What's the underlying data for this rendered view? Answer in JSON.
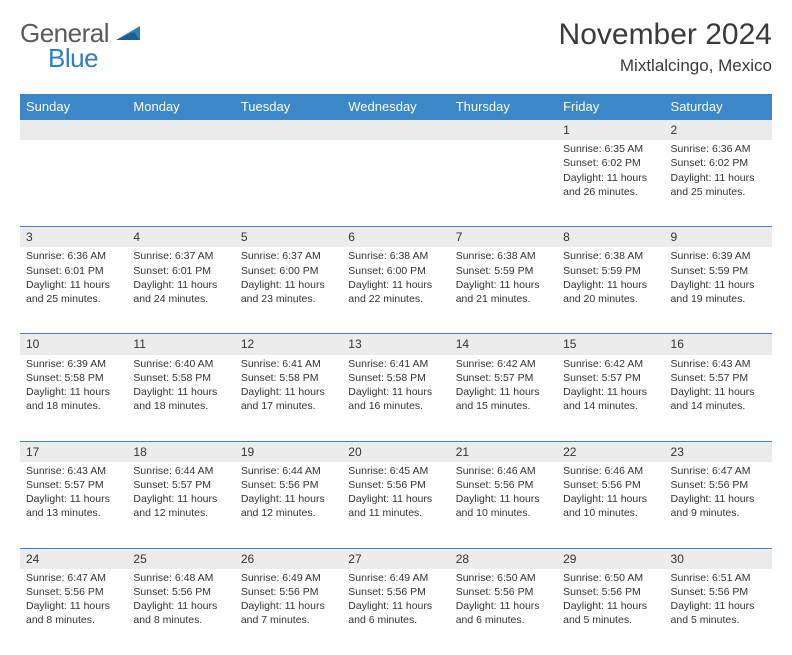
{
  "logo": {
    "text1": "General",
    "text2": "Blue",
    "color_general": "#5a5a5a",
    "color_blue": "#2f7ec1"
  },
  "title": "November 2024",
  "location": "Mixtlalcingo, Mexico",
  "header_bg": "#3b87c8",
  "header_fg": "#ffffff",
  "daynum_bg": "#ececec",
  "border_color": "#3b87c8",
  "text_color": "#333333",
  "weekdays": [
    "Sunday",
    "Monday",
    "Tuesday",
    "Wednesday",
    "Thursday",
    "Friday",
    "Saturday"
  ],
  "weeks": [
    [
      null,
      null,
      null,
      null,
      null,
      {
        "n": "1",
        "sr": "6:35 AM",
        "ss": "6:02 PM",
        "dl": "11 hours and 26 minutes."
      },
      {
        "n": "2",
        "sr": "6:36 AM",
        "ss": "6:02 PM",
        "dl": "11 hours and 25 minutes."
      }
    ],
    [
      {
        "n": "3",
        "sr": "6:36 AM",
        "ss": "6:01 PM",
        "dl": "11 hours and 25 minutes."
      },
      {
        "n": "4",
        "sr": "6:37 AM",
        "ss": "6:01 PM",
        "dl": "11 hours and 24 minutes."
      },
      {
        "n": "5",
        "sr": "6:37 AM",
        "ss": "6:00 PM",
        "dl": "11 hours and 23 minutes."
      },
      {
        "n": "6",
        "sr": "6:38 AM",
        "ss": "6:00 PM",
        "dl": "11 hours and 22 minutes."
      },
      {
        "n": "7",
        "sr": "6:38 AM",
        "ss": "5:59 PM",
        "dl": "11 hours and 21 minutes."
      },
      {
        "n": "8",
        "sr": "6:38 AM",
        "ss": "5:59 PM",
        "dl": "11 hours and 20 minutes."
      },
      {
        "n": "9",
        "sr": "6:39 AM",
        "ss": "5:59 PM",
        "dl": "11 hours and 19 minutes."
      }
    ],
    [
      {
        "n": "10",
        "sr": "6:39 AM",
        "ss": "5:58 PM",
        "dl": "11 hours and 18 minutes."
      },
      {
        "n": "11",
        "sr": "6:40 AM",
        "ss": "5:58 PM",
        "dl": "11 hours and 18 minutes."
      },
      {
        "n": "12",
        "sr": "6:41 AM",
        "ss": "5:58 PM",
        "dl": "11 hours and 17 minutes."
      },
      {
        "n": "13",
        "sr": "6:41 AM",
        "ss": "5:58 PM",
        "dl": "11 hours and 16 minutes."
      },
      {
        "n": "14",
        "sr": "6:42 AM",
        "ss": "5:57 PM",
        "dl": "11 hours and 15 minutes."
      },
      {
        "n": "15",
        "sr": "6:42 AM",
        "ss": "5:57 PM",
        "dl": "11 hours and 14 minutes."
      },
      {
        "n": "16",
        "sr": "6:43 AM",
        "ss": "5:57 PM",
        "dl": "11 hours and 14 minutes."
      }
    ],
    [
      {
        "n": "17",
        "sr": "6:43 AM",
        "ss": "5:57 PM",
        "dl": "11 hours and 13 minutes."
      },
      {
        "n": "18",
        "sr": "6:44 AM",
        "ss": "5:57 PM",
        "dl": "11 hours and 12 minutes."
      },
      {
        "n": "19",
        "sr": "6:44 AM",
        "ss": "5:56 PM",
        "dl": "11 hours and 12 minutes."
      },
      {
        "n": "20",
        "sr": "6:45 AM",
        "ss": "5:56 PM",
        "dl": "11 hours and 11 minutes."
      },
      {
        "n": "21",
        "sr": "6:46 AM",
        "ss": "5:56 PM",
        "dl": "11 hours and 10 minutes."
      },
      {
        "n": "22",
        "sr": "6:46 AM",
        "ss": "5:56 PM",
        "dl": "11 hours and 10 minutes."
      },
      {
        "n": "23",
        "sr": "6:47 AM",
        "ss": "5:56 PM",
        "dl": "11 hours and 9 minutes."
      }
    ],
    [
      {
        "n": "24",
        "sr": "6:47 AM",
        "ss": "5:56 PM",
        "dl": "11 hours and 8 minutes."
      },
      {
        "n": "25",
        "sr": "6:48 AM",
        "ss": "5:56 PM",
        "dl": "11 hours and 8 minutes."
      },
      {
        "n": "26",
        "sr": "6:49 AM",
        "ss": "5:56 PM",
        "dl": "11 hours and 7 minutes."
      },
      {
        "n": "27",
        "sr": "6:49 AM",
        "ss": "5:56 PM",
        "dl": "11 hours and 6 minutes."
      },
      {
        "n": "28",
        "sr": "6:50 AM",
        "ss": "5:56 PM",
        "dl": "11 hours and 6 minutes."
      },
      {
        "n": "29",
        "sr": "6:50 AM",
        "ss": "5:56 PM",
        "dl": "11 hours and 5 minutes."
      },
      {
        "n": "30",
        "sr": "6:51 AM",
        "ss": "5:56 PM",
        "dl": "11 hours and 5 minutes."
      }
    ]
  ],
  "labels": {
    "sunrise": "Sunrise:",
    "sunset": "Sunset:",
    "daylight": "Daylight:"
  }
}
